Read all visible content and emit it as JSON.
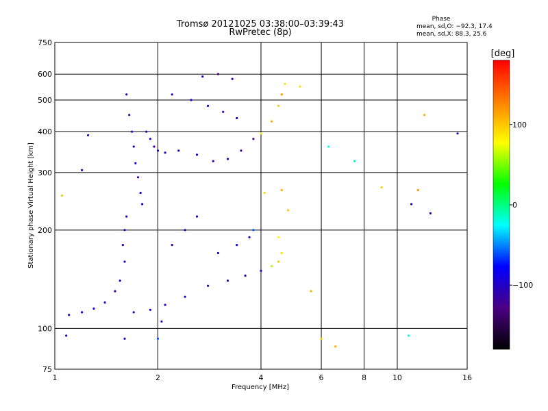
{
  "chart_data": {
    "type": "scatter",
    "title": "Tromsø 20121025 03:38:00–03:39:43",
    "subtitle": "RwPretec (8p)",
    "xlabel": "Frequency [MHz]",
    "ylabel": "Stationary phase Virtual Height [km]",
    "x_scale": "log2",
    "y_scale": "log",
    "xlim": [
      1,
      16
    ],
    "ylim": [
      75,
      750
    ],
    "x_ticks": [
      1,
      2,
      4,
      6,
      8,
      10,
      16
    ],
    "y_ticks": [
      75,
      100,
      200,
      300,
      400,
      500,
      600,
      750
    ],
    "grid": true,
    "phase_stats": {
      "heading": "Phase",
      "line_o": "mean, sd,O: −92.3, 17.4",
      "line_x": "mean, sd,X: 88.3, 25.6"
    },
    "colorbar": {
      "label": "[deg]",
      "range": [
        -180,
        180
      ],
      "ticks": [
        {
          "value": 100,
          "label": "100"
        },
        {
          "value": 0,
          "label": "0"
        },
        {
          "value": -100,
          "label": "−100"
        }
      ],
      "colors": [
        "#000000",
        "#4b0082",
        "#0000ff",
        "#00ffff",
        "#00ff00",
        "#ffff00",
        "#ff8000",
        "#ff0000"
      ]
    },
    "series": [
      {
        "description": "Echo traces (virtual height vs frequency), phase colour-coded",
        "points": [
          {
            "x": 1.62,
            "y": 520,
            "phase": -105
          },
          {
            "x": 1.65,
            "y": 450,
            "phase": -110
          },
          {
            "x": 1.68,
            "y": 400,
            "phase": -100
          },
          {
            "x": 1.7,
            "y": 360,
            "phase": -108
          },
          {
            "x": 1.72,
            "y": 320,
            "phase": -95
          },
          {
            "x": 1.75,
            "y": 290,
            "phase": -112
          },
          {
            "x": 1.78,
            "y": 260,
            "phase": -100
          },
          {
            "x": 1.8,
            "y": 240,
            "phase": -90
          },
          {
            "x": 1.62,
            "y": 220,
            "phase": -105
          },
          {
            "x": 1.6,
            "y": 200,
            "phase": -100
          },
          {
            "x": 1.58,
            "y": 180,
            "phase": -110
          },
          {
            "x": 1.6,
            "y": 160,
            "phase": -95
          },
          {
            "x": 1.85,
            "y": 400,
            "phase": -108
          },
          {
            "x": 1.9,
            "y": 380,
            "phase": -100
          },
          {
            "x": 1.95,
            "y": 360,
            "phase": -112
          },
          {
            "x": 2.0,
            "y": 350,
            "phase": -105
          },
          {
            "x": 2.1,
            "y": 345,
            "phase": -100
          },
          {
            "x": 2.3,
            "y": 350,
            "phase": -108
          },
          {
            "x": 2.6,
            "y": 340,
            "phase": -95
          },
          {
            "x": 2.9,
            "y": 325,
            "phase": -110
          },
          {
            "x": 3.2,
            "y": 330,
            "phase": -100
          },
          {
            "x": 3.5,
            "y": 350,
            "phase": -120
          },
          {
            "x": 3.8,
            "y": 380,
            "phase": -130
          },
          {
            "x": 4.0,
            "y": 395,
            "phase": 80
          },
          {
            "x": 4.3,
            "y": 430,
            "phase": 110
          },
          {
            "x": 4.5,
            "y": 480,
            "phase": 100
          },
          {
            "x": 4.6,
            "y": 520,
            "phase": 120
          },
          {
            "x": 4.7,
            "y": 560,
            "phase": 90
          },
          {
            "x": 2.2,
            "y": 520,
            "phase": -110
          },
          {
            "x": 2.5,
            "y": 500,
            "phase": -100
          },
          {
            "x": 2.8,
            "y": 480,
            "phase": -105
          },
          {
            "x": 3.1,
            "y": 460,
            "phase": -112
          },
          {
            "x": 3.4,
            "y": 440,
            "phase": -100
          },
          {
            "x": 3.0,
            "y": 600,
            "phase": -125
          },
          {
            "x": 2.7,
            "y": 590,
            "phase": -100
          },
          {
            "x": 3.3,
            "y": 580,
            "phase": -110
          },
          {
            "x": 1.55,
            "y": 140,
            "phase": -100
          },
          {
            "x": 1.5,
            "y": 130,
            "phase": -110
          },
          {
            "x": 1.4,
            "y": 120,
            "phase": -100
          },
          {
            "x": 1.3,
            "y": 115,
            "phase": -95
          },
          {
            "x": 1.2,
            "y": 112,
            "phase": -90
          },
          {
            "x": 1.1,
            "y": 110,
            "phase": -105
          },
          {
            "x": 1.7,
            "y": 112,
            "phase": -110
          },
          {
            "x": 1.9,
            "y": 114,
            "phase": -100
          },
          {
            "x": 2.1,
            "y": 118,
            "phase": -108
          },
          {
            "x": 2.4,
            "y": 125,
            "phase": -100
          },
          {
            "x": 2.8,
            "y": 135,
            "phase": -110
          },
          {
            "x": 3.2,
            "y": 140,
            "phase": -100
          },
          {
            "x": 3.6,
            "y": 145,
            "phase": -105
          },
          {
            "x": 4.0,
            "y": 150,
            "phase": -100
          },
          {
            "x": 4.3,
            "y": 155,
            "phase": 60
          },
          {
            "x": 4.5,
            "y": 160,
            "phase": 100
          },
          {
            "x": 4.6,
            "y": 170,
            "phase": 90
          },
          {
            "x": 3.0,
            "y": 170,
            "phase": -100
          },
          {
            "x": 3.4,
            "y": 180,
            "phase": -90
          },
          {
            "x": 3.7,
            "y": 190,
            "phase": -100
          },
          {
            "x": 2.6,
            "y": 220,
            "phase": -105
          },
          {
            "x": 2.4,
            "y": 200,
            "phase": -100
          },
          {
            "x": 2.2,
            "y": 180,
            "phase": -110
          },
          {
            "x": 2.05,
            "y": 105,
            "phase": -100
          },
          {
            "x": 1.25,
            "y": 390,
            "phase": -100
          },
          {
            "x": 1.2,
            "y": 305,
            "phase": -110
          },
          {
            "x": 1.05,
            "y": 255,
            "phase": 100
          },
          {
            "x": 1.08,
            "y": 95,
            "phase": -100
          },
          {
            "x": 1.6,
            "y": 93,
            "phase": -100
          },
          {
            "x": 2.0,
            "y": 93,
            "phase": -60
          },
          {
            "x": 6.0,
            "y": 93,
            "phase": 100
          },
          {
            "x": 6.6,
            "y": 88,
            "phase": 110
          },
          {
            "x": 10.8,
            "y": 95,
            "phase": -20
          },
          {
            "x": 6.3,
            "y": 360,
            "phase": -20
          },
          {
            "x": 7.5,
            "y": 325,
            "phase": -10
          },
          {
            "x": 9.0,
            "y": 270,
            "phase": 100
          },
          {
            "x": 11.0,
            "y": 240,
            "phase": -100
          },
          {
            "x": 11.5,
            "y": 265,
            "phase": 120
          },
          {
            "x": 12.5,
            "y": 225,
            "phase": -110
          },
          {
            "x": 12.0,
            "y": 450,
            "phase": 110
          },
          {
            "x": 15.0,
            "y": 395,
            "phase": -105
          },
          {
            "x": 5.6,
            "y": 130,
            "phase": 110
          },
          {
            "x": 5.2,
            "y": 550,
            "phase": 90
          },
          {
            "x": 4.6,
            "y": 265,
            "phase": 110
          },
          {
            "x": 4.8,
            "y": 230,
            "phase": 100
          },
          {
            "x": 4.1,
            "y": 260,
            "phase": 90
          },
          {
            "x": 3.8,
            "y": 200,
            "phase": -60
          },
          {
            "x": 4.5,
            "y": 190,
            "phase": 80
          }
        ]
      }
    ]
  }
}
